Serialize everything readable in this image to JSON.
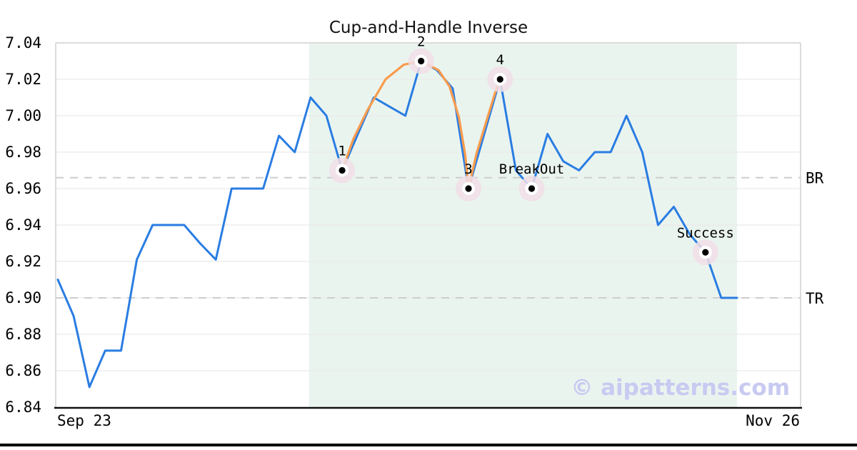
{
  "watermark": "© aipatterns.com",
  "footer_rule_color": "#000000",
  "chart_data": {
    "type": "line",
    "title": "Cup-and-Handle Inverse",
    "x_axis": {
      "start_label": "Sep 23",
      "end_label": "Nov 26"
    },
    "y_axis": {
      "min": 6.84,
      "max": 7.04,
      "tick_step": 0.02,
      "ticks": [
        7.04,
        7.02,
        7.0,
        6.98,
        6.96,
        6.94,
        6.92,
        6.9,
        6.88,
        6.86,
        6.84
      ],
      "tick_labels": [
        "7.04",
        "7.02",
        "7.00",
        "6.98",
        "6.96",
        "6.94",
        "6.92",
        "6.90",
        "6.88",
        "6.86",
        "6.84"
      ]
    },
    "grid": true,
    "legend": "none",
    "series": [
      {
        "name": "price",
        "color": "#2a7de2",
        "values": [
          6.91,
          6.89,
          6.851,
          6.871,
          6.871,
          6.921,
          6.94,
          6.94,
          6.94,
          6.93,
          6.921,
          6.96,
          6.96,
          6.96,
          6.989,
          6.98,
          7.01,
          7.0,
          6.97,
          6.99,
          7.01,
          7.005,
          7.0,
          7.03,
          7.025,
          7.015,
          6.96,
          6.99,
          7.02,
          6.97,
          6.96,
          6.99,
          6.975,
          6.97,
          6.98,
          6.98,
          7.0,
          6.98,
          6.94,
          6.95,
          6.935,
          6.925,
          6.9,
          6.9
        ]
      },
      {
        "name": "pattern-overlay",
        "color": "#f89c4d",
        "points": [
          [
            18.0,
            6.97
          ],
          [
            18.7,
            6.987
          ],
          [
            19.6,
            7.003
          ],
          [
            20.75,
            7.02
          ],
          [
            21.9,
            7.028
          ],
          [
            23.0,
            7.03
          ],
          [
            24.1,
            7.025
          ],
          [
            24.8,
            7.016
          ],
          [
            25.4,
            6.999
          ],
          [
            25.8,
            6.978
          ],
          [
            26.0,
            6.96
          ],
          [
            26.5,
            6.979
          ],
          [
            27.2,
            6.999
          ],
          [
            27.7,
            7.013
          ],
          [
            28.0,
            7.02
          ]
        ]
      }
    ],
    "levels": [
      {
        "label": "BR",
        "value": 6.966
      },
      {
        "label": "TR",
        "value": 6.9
      }
    ],
    "pattern_zone": {
      "start_index": 15.9,
      "end_index": 43,
      "color": "#eaf4ef"
    },
    "annotations": [
      {
        "label": "1",
        "index": 18,
        "value": 6.97
      },
      {
        "label": "2",
        "index": 23,
        "value": 7.03
      },
      {
        "label": "3",
        "index": 26,
        "value": 6.96
      },
      {
        "label": "4",
        "index": 28,
        "value": 7.02
      },
      {
        "label": "BreakOut",
        "index": 30,
        "value": 6.96
      },
      {
        "label": "Success",
        "index": 41,
        "value": 6.925
      }
    ],
    "colors": {
      "grid": "#e9e9e9",
      "dashed_level": "#cdcdcd",
      "spine_light": "#dcdcdc",
      "spine_dark": "#111111",
      "marker_dot": "#000000",
      "marker_ring": "#ffffff",
      "marker_halo": "#f1dee6",
      "watermark": "#c9caf1"
    }
  }
}
